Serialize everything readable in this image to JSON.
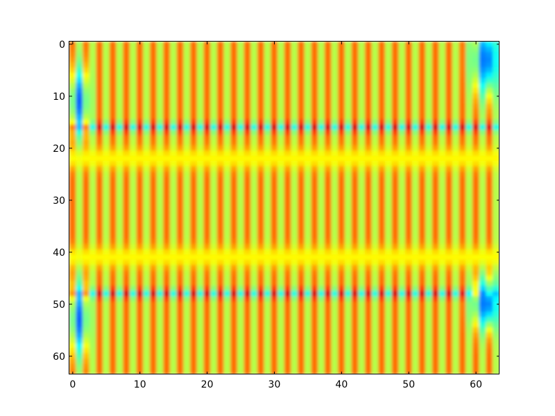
{
  "chart_data": {
    "type": "heatmap",
    "title": "",
    "xlabel": "",
    "ylabel": "",
    "colormap": "jet",
    "grid": false,
    "legend": "none",
    "shape": [
      64,
      64
    ],
    "xlim": [
      -0.5,
      63.5
    ],
    "ylim": [
      63.5,
      -0.5
    ],
    "y_axis_inverted": true,
    "x_ticks": [
      {
        "value": 0,
        "label": "0"
      },
      {
        "value": 10,
        "label": "10"
      },
      {
        "value": 20,
        "label": "20"
      },
      {
        "value": 30,
        "label": "30"
      },
      {
        "value": 40,
        "label": "40"
      },
      {
        "value": 50,
        "label": "50"
      },
      {
        "value": 60,
        "label": "60"
      }
    ],
    "y_ticks": [
      {
        "value": 0,
        "label": "0"
      },
      {
        "value": 10,
        "label": "10"
      },
      {
        "value": 20,
        "label": "20"
      },
      {
        "value": 30,
        "label": "30"
      },
      {
        "value": 40,
        "label": "40"
      },
      {
        "value": 50,
        "label": "50"
      },
      {
        "value": 60,
        "label": "60"
      }
    ],
    "dark_rows": [
      16,
      48
    ],
    "bright_rows": [
      22,
      41
    ],
    "low_value_regions": [
      {
        "x": [
          0,
          2
        ],
        "y": [
          3,
          16
        ],
        "center_y": 11
      },
      {
        "x": [
          0,
          2
        ],
        "y": [
          48,
          62
        ],
        "center_y": 53
      },
      {
        "x": [
          60,
          63
        ],
        "y": [
          0,
          14
        ],
        "center_y": 3
      },
      {
        "x": [
          60,
          63
        ],
        "y": [
          48,
          58
        ],
        "center_y": 50
      }
    ],
    "column_stripe_period": 2
  }
}
